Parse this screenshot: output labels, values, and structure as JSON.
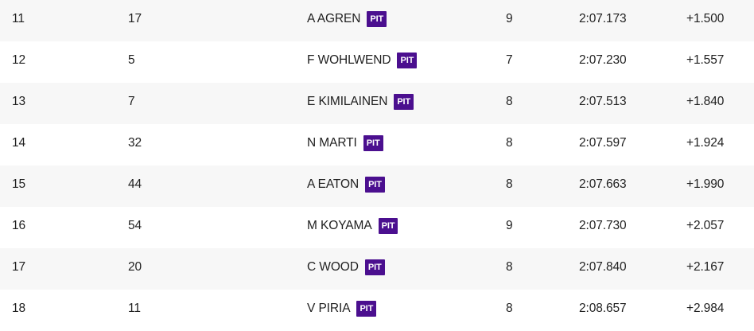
{
  "colors": {
    "pit_badge": "#4b0f8f",
    "row_alt": "#f7f7f7",
    "row_plain": "#ffffff",
    "text": "#1f1f1f"
  },
  "rows": [
    {
      "position": "11",
      "car_number": "17",
      "driver": "A AGREN",
      "badge": "PIT",
      "laps": "9",
      "time": "2:07.173",
      "gap": "+1.500"
    },
    {
      "position": "12",
      "car_number": "5",
      "driver": "F WOHLWEND",
      "badge": "PIT",
      "laps": "7",
      "time": "2:07.230",
      "gap": "+1.557"
    },
    {
      "position": "13",
      "car_number": "7",
      "driver": "E KIMILAINEN",
      "badge": "PIT",
      "laps": "8",
      "time": "2:07.513",
      "gap": "+1.840"
    },
    {
      "position": "14",
      "car_number": "32",
      "driver": "N MARTI",
      "badge": "PIT",
      "laps": "8",
      "time": "2:07.597",
      "gap": "+1.924"
    },
    {
      "position": "15",
      "car_number": "44",
      "driver": "A EATON",
      "badge": "PIT",
      "laps": "8",
      "time": "2:07.663",
      "gap": "+1.990"
    },
    {
      "position": "16",
      "car_number": "54",
      "driver": "M KOYAMA",
      "badge": "PIT",
      "laps": "9",
      "time": "2:07.730",
      "gap": "+2.057"
    },
    {
      "position": "17",
      "car_number": "20",
      "driver": "C WOOD",
      "badge": "PIT",
      "laps": "8",
      "time": "2:07.840",
      "gap": "+2.167"
    },
    {
      "position": "18",
      "car_number": "11",
      "driver": "V PIRIA",
      "badge": "PIT",
      "laps": "8",
      "time": "2:08.657",
      "gap": "+2.984"
    }
  ]
}
